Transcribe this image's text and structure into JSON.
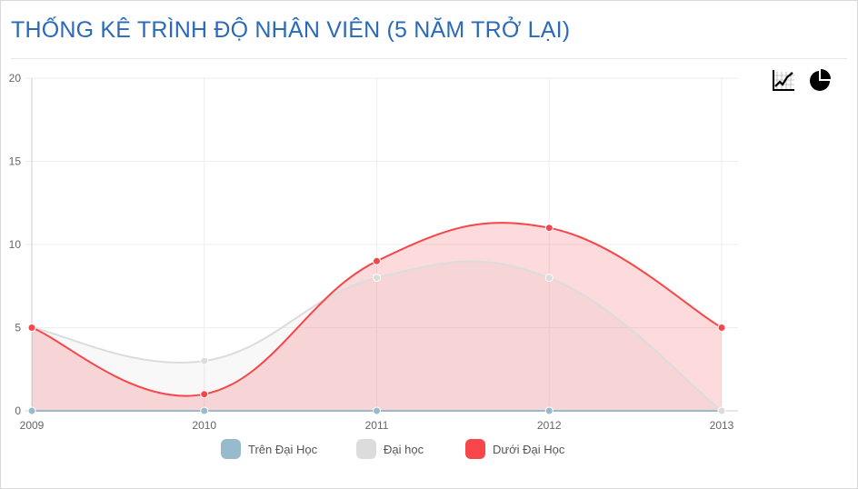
{
  "header": {
    "title": "THỐNG KÊ TRÌNH ĐỘ NHÂN VIÊN (5 NĂM TRỞ LẠI)"
  },
  "toolbar": {
    "buttons": [
      {
        "icon": "line-chart-icon"
      },
      {
        "icon": "pie-chart-icon"
      }
    ]
  },
  "chart_data": {
    "type": "area",
    "x": [
      "2009",
      "2010",
      "2011",
      "2012",
      "2013"
    ],
    "ylim": [
      0,
      20
    ],
    "yticks": [
      0,
      5,
      10,
      15,
      20
    ],
    "grid": true,
    "legend_position": "bottom",
    "series": [
      {
        "name": "Trên Đại Học",
        "values": [
          0,
          0,
          0,
          0,
          0
        ],
        "color": "#97bbcd"
      },
      {
        "name": "Đại học",
        "values": [
          5,
          3,
          8,
          8,
          0
        ],
        "color": "#dcdcdc"
      },
      {
        "name": "Dưới Đại Học",
        "values": [
          5,
          1,
          9,
          11,
          5
        ],
        "color": "#f7464a"
      }
    ]
  }
}
